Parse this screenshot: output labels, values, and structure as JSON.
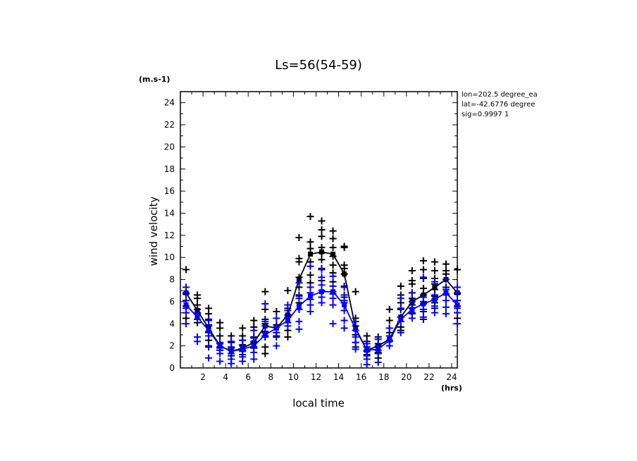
{
  "chart_data": {
    "type": "scatter",
    "title": "Ls=56(54-59)",
    "xlabel": "local time",
    "ylabel": "wind velocity",
    "x_unit": "(hrs)",
    "y_unit": "(m.s-1)",
    "xlim": [
      0,
      24.5
    ],
    "ylim": [
      0,
      25
    ],
    "xticks": [
      2,
      4,
      6,
      8,
      10,
      12,
      14,
      16,
      18,
      20,
      22,
      24
    ],
    "yticks": [
      0,
      2,
      4,
      6,
      8,
      10,
      12,
      14,
      16,
      18,
      20,
      22,
      24
    ],
    "grid": false,
    "info_lines": [
      "lon=202.5 degree_ea",
      "lat=-42.6776 degree",
      "sig=0.9997 1"
    ],
    "x": [
      0.5,
      1.5,
      2.5,
      3.5,
      4.5,
      5.5,
      6.5,
      7.5,
      8.5,
      9.5,
      10.5,
      11.5,
      12.5,
      13.5,
      14.5,
      15.5,
      16.5,
      17.5,
      18.5,
      19.5,
      20.5,
      21.5,
      22.5,
      23.5,
      24.5
    ],
    "series": [
      {
        "color": "#000000",
        "mean": [
          6.8,
          5.2,
          3.6,
          2.0,
          1.5,
          1.8,
          2.3,
          3.8,
          3.6,
          4.8,
          8.0,
          10.3,
          10.5,
          10.3,
          8.5,
          3.6,
          1.6,
          2.0,
          2.6,
          4.6,
          6.0,
          6.6,
          7.3,
          8.0,
          6.8
        ],
        "scatter": [
          [
            8.9,
            7.3,
            6.7,
            6.1,
            5.6,
            4.5
          ],
          [
            6.6,
            6.3,
            5.7,
            5.3,
            4.9,
            4.1
          ],
          [
            5.4,
            4.9,
            4.4,
            3.8,
            3.2,
            2.5,
            1.9
          ],
          [
            4.1,
            3.6,
            2.9,
            2.2,
            1.9,
            1.6
          ],
          [
            2.9,
            2.3,
            1.8,
            1.6,
            1.1
          ],
          [
            3.6,
            2.9,
            2.5,
            2.1,
            1.6,
            1.2
          ],
          [
            4.3,
            3.7,
            2.8,
            2.3,
            1.8
          ],
          [
            6.9,
            5.3,
            4.4,
            4.0,
            3.3,
            2.8,
            1.9,
            1.3
          ],
          [
            5.1,
            3.9,
            3.2,
            2.8
          ],
          [
            7.0,
            5.4,
            4.8,
            3.4,
            2.8
          ],
          [
            11.8,
            9.9,
            9.6,
            8.2,
            7.3,
            6.6,
            5.9,
            5.3
          ],
          [
            13.7,
            11.4,
            10.8,
            9.6,
            8.4,
            7.7,
            7.3
          ],
          [
            13.3,
            12.5,
            11.9,
            10.9,
            10.4,
            9.8,
            9.0,
            7.9
          ],
          [
            12.4,
            11.7,
            10.9,
            10.1,
            9.3,
            8.6,
            7.8,
            6.7
          ],
          [
            11.0,
            10.9,
            9.3,
            9.0,
            8.5,
            7.4,
            6.4
          ],
          [
            6.9,
            4.5,
            3.8,
            3.0,
            2.3,
            1.9
          ],
          [
            2.9,
            2.4,
            1.9,
            1.5,
            1.2
          ],
          [
            2.8,
            2.2,
            1.9,
            1.4,
            0.9
          ],
          [
            5.3,
            4.3,
            3.6,
            3.2,
            2.9,
            2.5
          ],
          [
            7.4,
            6.6,
            5.9,
            5.3,
            4.6,
            3.7,
            3.4
          ],
          [
            8.8,
            7.9,
            7.6,
            6.8,
            6.3,
            5.7,
            4.9
          ],
          [
            9.7,
            8.9,
            8.1,
            7.2,
            6.6,
            6.0,
            5.1,
            4.4
          ],
          [
            9.6,
            8.8,
            8.1,
            7.6,
            7.1,
            6.5,
            5.9,
            5.4
          ],
          [
            9.4,
            8.8,
            8.5,
            8.0,
            7.3,
            6.7
          ],
          [
            8.9,
            7.3,
            6.7,
            6.1,
            5.6,
            4.5
          ]
        ]
      },
      {
        "color": "#0000ff",
        "mean": [
          5.7,
          4.6,
          3.4,
          2.0,
          1.5,
          1.7,
          2.0,
          3.0,
          3.6,
          4.3,
          5.6,
          6.5,
          6.9,
          6.9,
          5.7,
          3.5,
          1.6,
          1.7,
          2.5,
          4.4,
          5.3,
          5.8,
          6.2,
          6.8,
          5.7
        ],
        "scatter": [
          [
            7.3,
            6.8,
            6.1,
            5.4,
            5.0,
            4.0
          ],
          [
            5.0,
            4.4,
            2.8,
            2.4
          ],
          [
            4.3,
            3.9,
            3.3,
            2.9,
            2.0,
            0.9
          ],
          [
            2.3,
            1.8,
            1.6,
            1.3,
            0.6
          ],
          [
            2.4,
            1.9,
            1.3,
            0.8,
            0.4
          ],
          [
            2.5,
            2.0,
            1.5,
            1.0,
            0.6
          ],
          [
            3.4,
            2.7,
            2.4,
            1.9,
            1.4,
            0.8
          ],
          [
            5.8,
            4.2,
            3.8,
            3.2,
            2.9
          ],
          [
            4.5,
            3.7,
            3.2,
            2.9,
            2.0
          ],
          [
            5.7,
            5.2,
            4.6,
            4.1,
            3.8
          ],
          [
            7.7,
            6.5,
            6.3,
            5.3,
            4.2,
            3.5
          ],
          [
            9.2,
            7.3,
            6.8,
            6.2,
            5.7,
            5.1
          ],
          [
            8.9,
            8.2,
            7.5,
            7.0,
            6.4,
            5.9
          ],
          [
            8.3,
            7.4,
            6.9,
            6.3,
            5.7,
            4.0
          ],
          [
            7.3,
            6.6,
            6.1,
            5.9,
            5.2,
            4.3,
            3.6
          ],
          [
            4.2,
            3.4,
            2.8,
            2.3,
            1.7
          ],
          [
            2.2,
            1.9,
            1.6,
            1.1,
            0.8,
            0.3
          ],
          [
            2.6,
            2.0,
            1.6,
            1.3,
            0.5
          ],
          [
            3.6,
            2.9,
            2.4,
            2.0
          ],
          [
            6.3,
            5.4,
            4.6,
            4.2,
            3.2
          ],
          [
            6.8,
            6.0,
            5.4,
            5.0,
            4.5
          ],
          [
            8.2,
            6.4,
            5.8,
            5.3,
            4.6
          ],
          [
            7.8,
            6.6,
            6.2,
            5.6,
            5.0
          ],
          [
            8.0,
            7.1,
            6.6,
            6.1,
            5.5,
            4.9
          ],
          [
            7.3,
            6.8,
            6.1,
            5.4,
            5.0,
            4.0
          ]
        ]
      }
    ]
  }
}
